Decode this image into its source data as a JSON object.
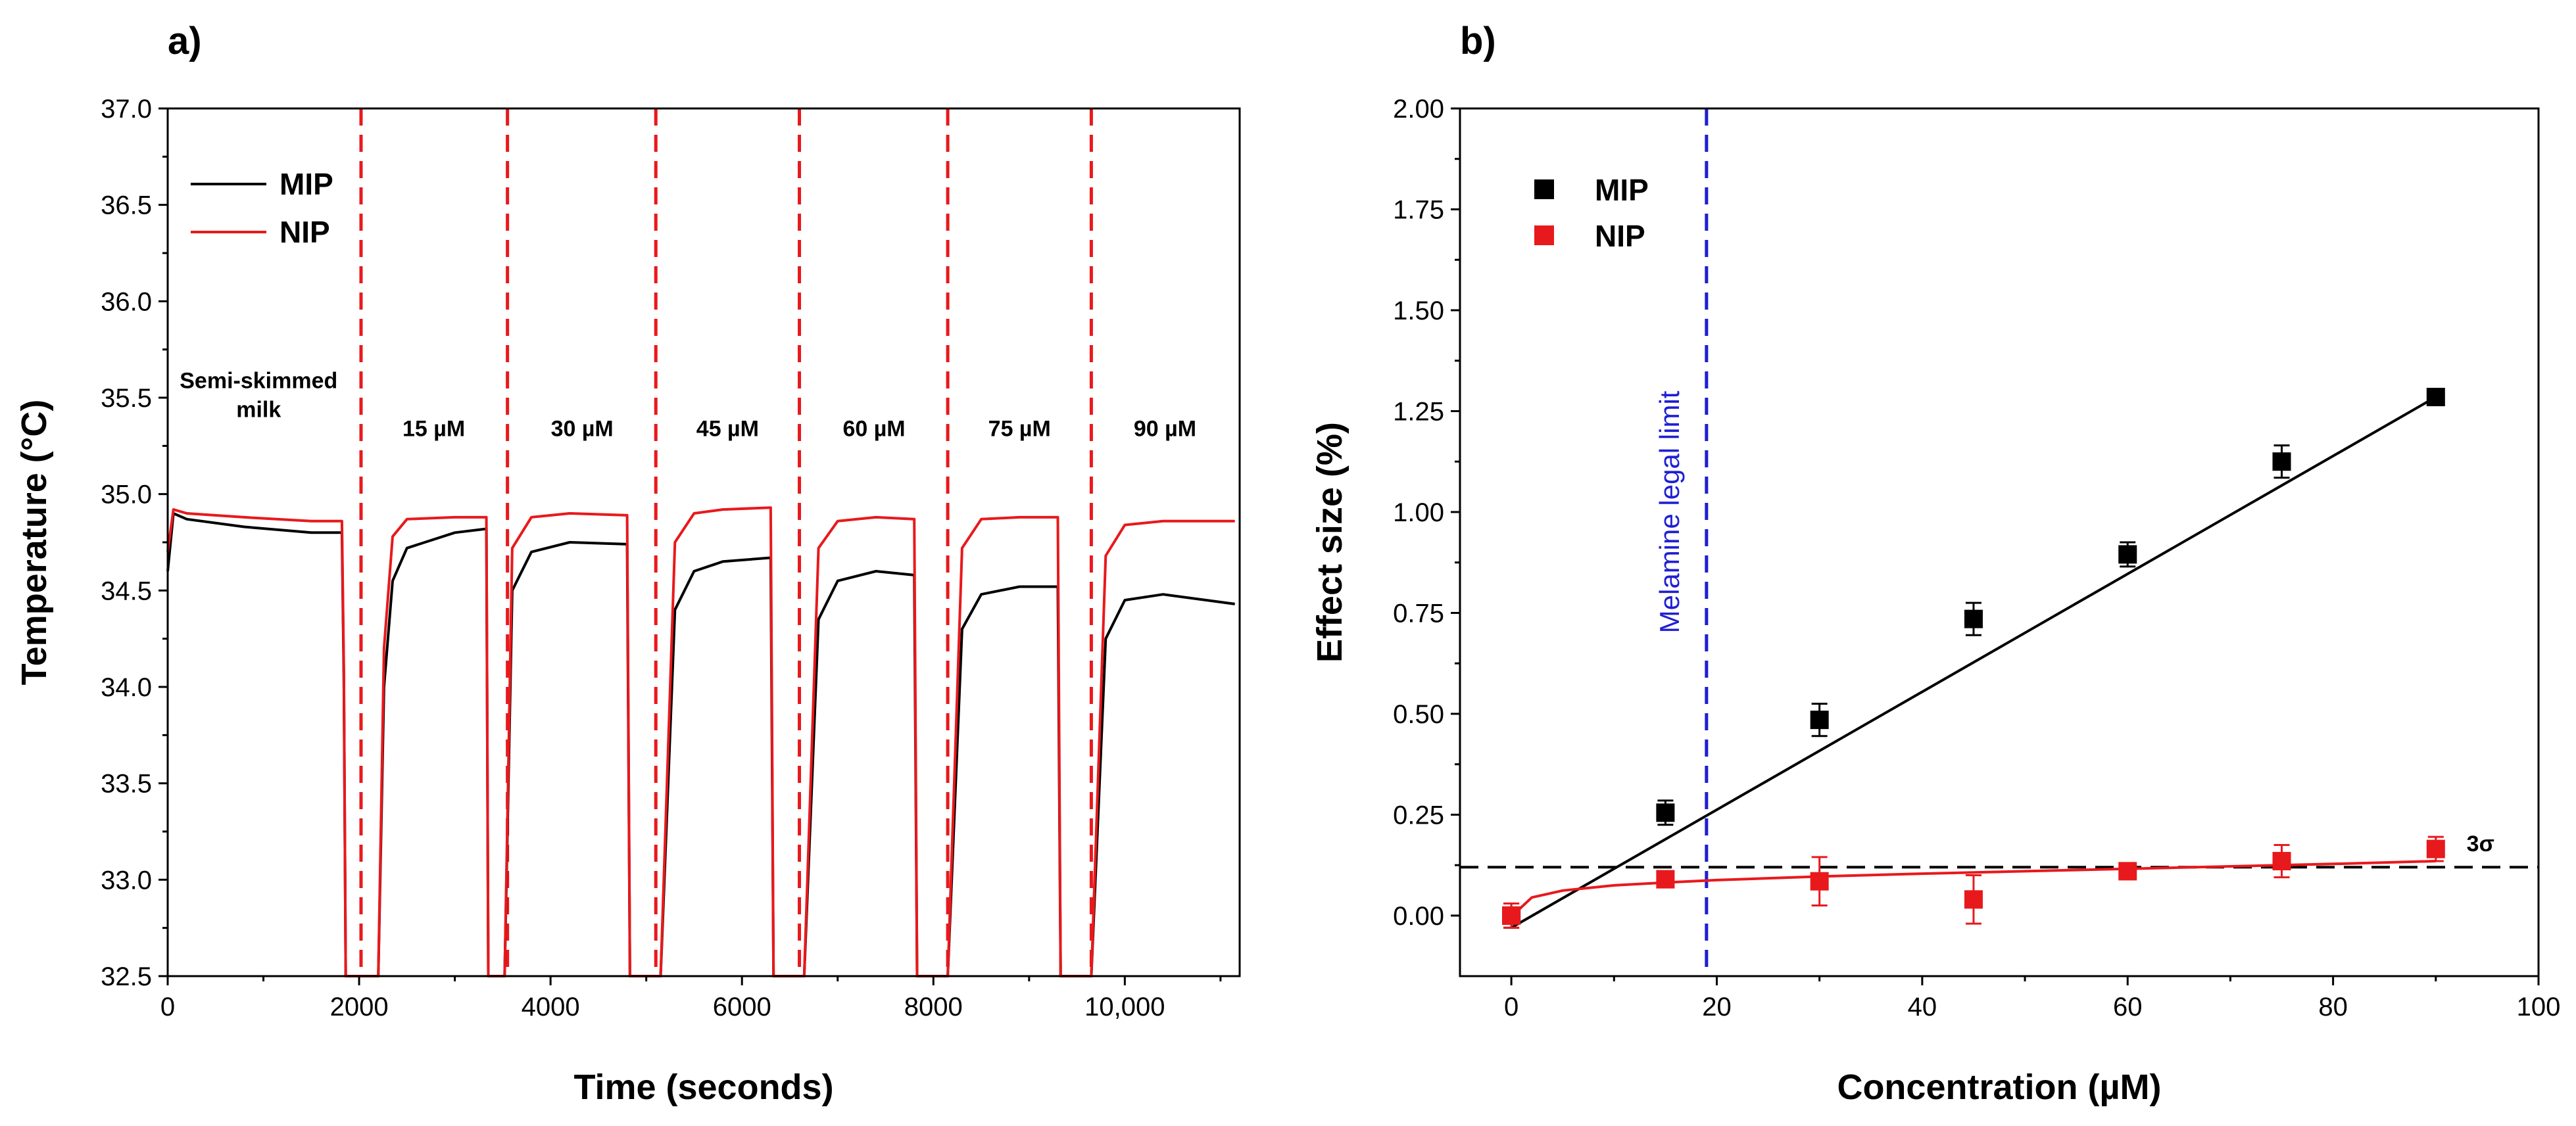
{
  "colors": {
    "mip": "#000000",
    "nip": "#e8191c",
    "legal_limit": "#1f1fd2",
    "threshold": "#000000"
  },
  "chart_data": [
    {
      "type": "line",
      "panel_label": "a)",
      "xlabel": "Time (seconds)",
      "ylabel": "Temperature (°C)",
      "xlim": [
        0,
        11200
      ],
      "ylim": [
        32.5,
        37.0
      ],
      "x_ticks": [
        0,
        2000,
        4000,
        6000,
        8000,
        10000
      ],
      "x_tick_labels": [
        "0",
        "2000",
        "4000",
        "6000",
        "8000",
        "10,000"
      ],
      "y_ticks": [
        32.5,
        33.0,
        33.5,
        34.0,
        34.5,
        35.0,
        35.5,
        36.0,
        36.5,
        37.0
      ],
      "y_tick_labels": [
        "32.5",
        "33.0",
        "33.5",
        "34.0",
        "34.5",
        "35.0",
        "35.5",
        "36.0",
        "36.5",
        "37.0"
      ],
      "legend": {
        "position": "top-left",
        "entries": [
          "MIP",
          "NIP"
        ]
      },
      "divider_lines_x": [
        2020,
        3550,
        5100,
        6600,
        8150,
        9650
      ],
      "region_labels": [
        {
          "text": "Semi-skimmed",
          "text2": "milk",
          "x": 950,
          "y": 35.55
        },
        {
          "text": "15 µM",
          "x": 2780,
          "y": 35.3
        },
        {
          "text": "30 µM",
          "x": 4330,
          "y": 35.3
        },
        {
          "text": "45 µM",
          "x": 5850,
          "y": 35.3
        },
        {
          "text": "60 µM",
          "x": 7380,
          "y": 35.3
        },
        {
          "text": "75 µM",
          "x": 8900,
          "y": 35.3
        },
        {
          "text": "90 µM",
          "x": 10420,
          "y": 35.3
        }
      ],
      "series": [
        {
          "name": "MIP",
          "x": [
            0,
            60,
            200,
            800,
            1500,
            1820,
            1840,
            1860,
            1880,
            2200,
            2260,
            2350,
            2500,
            3000,
            3330,
            3350,
            3380,
            3450,
            3520,
            3600,
            3800,
            4200,
            4800,
            4830,
            4880,
            5150,
            5300,
            5500,
            5800,
            6300,
            6330,
            6380,
            6650,
            6800,
            7000,
            7400,
            7800,
            7830,
            7880,
            8150,
            8300,
            8500,
            8900,
            9300,
            9330,
            9380,
            9650,
            9800,
            10000,
            10400,
            11150
          ],
          "y": [
            34.6,
            34.9,
            34.87,
            34.83,
            34.8,
            34.8,
            34.05,
            32.5,
            32.5,
            32.5,
            34.0,
            34.55,
            34.72,
            34.8,
            34.82,
            32.5,
            32.5,
            32.5,
            32.5,
            34.5,
            34.7,
            34.75,
            34.74,
            32.5,
            32.5,
            32.5,
            34.4,
            34.6,
            34.65,
            34.67,
            32.5,
            32.5,
            32.5,
            34.35,
            34.55,
            34.6,
            34.58,
            32.5,
            32.5,
            32.5,
            34.3,
            34.48,
            34.52,
            34.52,
            32.5,
            32.5,
            32.5,
            34.25,
            34.45,
            34.48,
            34.43
          ]
        },
        {
          "name": "NIP",
          "x": [
            0,
            60,
            200,
            800,
            1500,
            1820,
            1840,
            1860,
            1880,
            2200,
            2260,
            2350,
            2500,
            3000,
            3330,
            3350,
            3380,
            3450,
            3520,
            3600,
            3800,
            4200,
            4800,
            4830,
            4880,
            5150,
            5300,
            5500,
            5800,
            6300,
            6330,
            6380,
            6650,
            6800,
            7000,
            7400,
            7800,
            7830,
            7880,
            8150,
            8300,
            8500,
            8900,
            9300,
            9330,
            9380,
            9650,
            9800,
            10000,
            10400,
            11150
          ],
          "y": [
            34.7,
            34.92,
            34.9,
            34.88,
            34.86,
            34.86,
            34.1,
            32.5,
            32.5,
            32.5,
            34.2,
            34.78,
            34.87,
            34.88,
            34.88,
            32.5,
            32.5,
            32.5,
            32.5,
            34.72,
            34.88,
            34.9,
            34.89,
            32.5,
            32.5,
            32.5,
            34.75,
            34.9,
            34.92,
            34.93,
            32.5,
            32.5,
            32.5,
            34.72,
            34.86,
            34.88,
            34.87,
            32.5,
            32.5,
            32.5,
            34.72,
            34.87,
            34.88,
            34.88,
            32.5,
            32.5,
            32.5,
            34.68,
            34.84,
            34.86,
            34.86
          ]
        }
      ]
    },
    {
      "type": "scatter",
      "panel_label": "b)",
      "xlabel": "Concentration (µM)",
      "ylabel": "Effect size (%)",
      "xlim": [
        -5,
        100
      ],
      "ylim": [
        -0.15,
        2.0
      ],
      "x_ticks": [
        0,
        20,
        40,
        60,
        80,
        100
      ],
      "x_tick_labels": [
        "0",
        "20",
        "40",
        "60",
        "80",
        "100"
      ],
      "y_ticks": [
        0.0,
        0.25,
        0.5,
        0.75,
        1.0,
        1.25,
        1.5,
        1.75,
        2.0
      ],
      "y_tick_labels": [
        "0.00",
        "0.25",
        "0.50",
        "0.75",
        "1.00",
        "1.25",
        "1.50",
        "1.75",
        "2.00"
      ],
      "legend": {
        "position": "top-left",
        "entries": [
          "MIP",
          "NIP"
        ]
      },
      "legal_limit": {
        "x": 19,
        "label": "Melamine legal limit"
      },
      "threshold": {
        "y": 0.12,
        "label": "3σ"
      },
      "series": [
        {
          "name": "MIP",
          "x": [
            0,
            15,
            30,
            45,
            60,
            75,
            90
          ],
          "y": [
            0.0,
            0.255,
            0.485,
            0.735,
            0.895,
            1.125,
            1.285
          ],
          "err": [
            0.03,
            0.03,
            0.04,
            0.04,
            0.03,
            0.04,
            0.02
          ],
          "fit": {
            "type": "linear",
            "x": [
              0,
              90
            ],
            "y": [
              -0.03,
              1.285
            ]
          }
        },
        {
          "name": "NIP",
          "x": [
            0,
            15,
            30,
            45,
            60,
            75,
            90
          ],
          "y": [
            0.0,
            0.09,
            0.085,
            0.04,
            0.11,
            0.135,
            0.165
          ],
          "err": [
            0.03,
            0.02,
            0.06,
            0.06,
            0.02,
            0.04,
            0.03
          ],
          "fit": {
            "type": "curve",
            "x": [
              0.1,
              2,
              5,
              10,
              15,
              20,
              30,
              40,
              50,
              60,
              70,
              80,
              90
            ],
            "y": [
              0.0,
              0.045,
              0.062,
              0.075,
              0.082,
              0.088,
              0.097,
              0.104,
              0.11,
              0.116,
              0.122,
              0.128,
              0.135
            ]
          }
        }
      ]
    }
  ]
}
